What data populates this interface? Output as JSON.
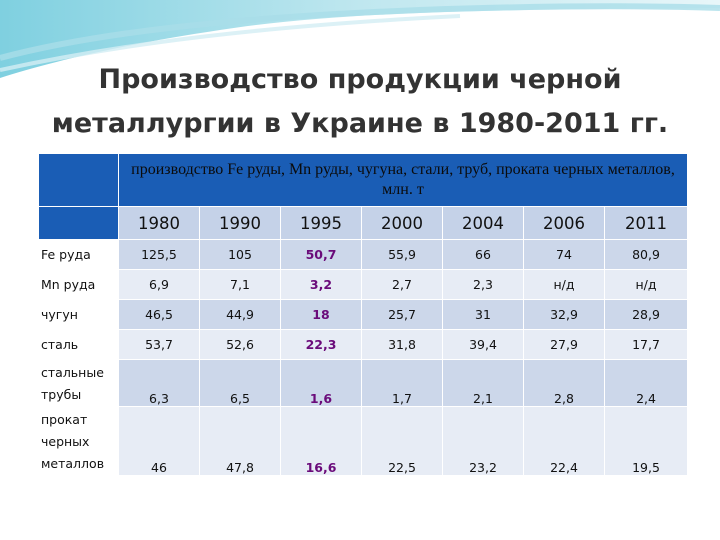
{
  "slide": {
    "title": "Производство продукции черной металлургии в Украине в 1980-2011 гг.",
    "caption": "производство Fe руды, Mn руды, чугуна, стали, труб, проката черных металлов, млн. т"
  },
  "table": {
    "years": [
      "1980",
      "1990",
      "1995",
      "2000",
      "2004",
      "2006",
      "2011"
    ],
    "rows": [
      {
        "label": "Fe руда",
        "values": [
          "125,5",
          "105",
          "50,7",
          "55,9",
          "66",
          "74",
          "80,9"
        ]
      },
      {
        "label": "Mn руда",
        "values": [
          "6,9",
          "7,1",
          "3,2",
          "2,7",
          "2,3",
          "н/д",
          "н/д"
        ]
      },
      {
        "label": "чугун",
        "values": [
          "46,5",
          "44,9",
          "18",
          "25,7",
          "31",
          "32,9",
          "28,9"
        ]
      },
      {
        "label": "сталь",
        "values": [
          "53,7",
          "52,6",
          "22,3",
          "31,8",
          "39,4",
          "27,9",
          "17,7"
        ]
      },
      {
        "label": "стальные трубы",
        "values": [
          "6,3",
          "6,5",
          "1,6",
          "1,7",
          "2,1",
          "2,8",
          "2,4"
        ]
      },
      {
        "label": "прокат черных металлов",
        "values": [
          "46",
          "47,8",
          "16,6",
          "22,5",
          "23,2",
          "22,4",
          "19,5"
        ]
      }
    ]
  },
  "colors": {
    "header_blue": "#1a5db5",
    "highlight": "#6a0b7a"
  }
}
